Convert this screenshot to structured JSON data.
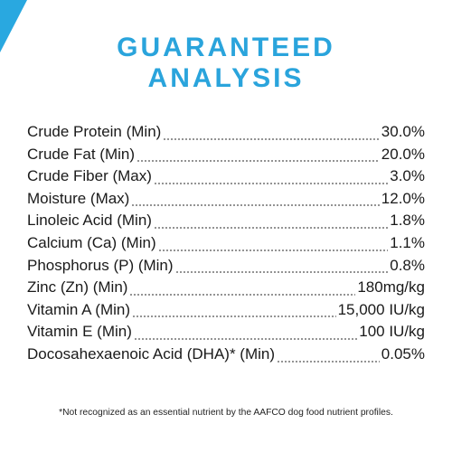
{
  "header": {
    "title_lines": [
      "GUARANTEED",
      "ANALYSIS"
    ]
  },
  "table": {
    "rows": [
      [
        "Crude Protein (Min)",
        "30.0%"
      ],
      [
        "Crude Fat (Min)",
        "20.0%"
      ],
      [
        "Crude Fiber (Max)",
        "3.0%"
      ],
      [
        "Moisture (Max)",
        "12.0%"
      ],
      [
        "Linoleic Acid (Min)",
        "1.8%"
      ],
      [
        "Calcium (Ca) (Min)",
        "1.1%"
      ],
      [
        "Phosphorus (P) (Min)",
        "0.8%"
      ],
      [
        "Zinc (Zn) (Min)",
        "180mg/kg"
      ],
      [
        "Vitamin A (Min)",
        "15,000 IU/kg"
      ],
      [
        "Vitamin E (Min)",
        "100 IU/kg"
      ],
      [
        "Docosahexaenoic Acid (DHA)* (Min)",
        "0.05%"
      ]
    ]
  },
  "footnote": "*Not recognized as an essential nutrient by the AAFCO dog food nutrient profiles."
}
